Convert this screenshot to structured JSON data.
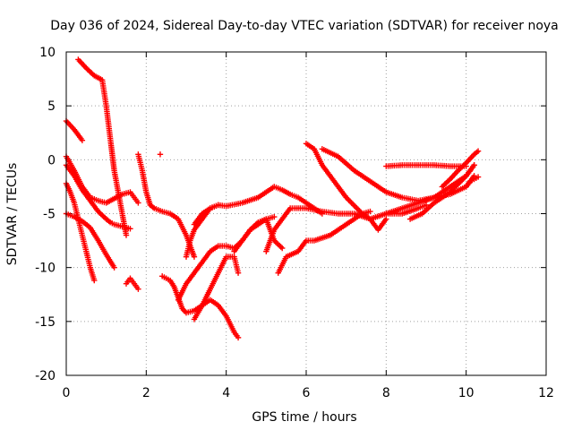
{
  "chart_data": {
    "type": "scatter",
    "title": "Day 036 of 2024, Sidereal Day-to-day VTEC variation (SDTVAR) for receiver noya",
    "xlabel": "GPS time / hours",
    "ylabel": "SDTVAR / TECUs",
    "xlim": [
      0,
      12
    ],
    "ylim": [
      -20,
      10
    ],
    "xticks": [
      0,
      2,
      4,
      6,
      8,
      10,
      12
    ],
    "yticks": [
      -20,
      -15,
      -10,
      -5,
      0,
      5,
      10
    ],
    "xtick_labels": [
      "0",
      "2",
      "4",
      "6",
      "8",
      "10",
      "12"
    ],
    "ytick_labels": [
      "-20",
      "-15",
      "-10",
      "-5",
      "0",
      "5",
      "10"
    ],
    "grid": true,
    "marker": "+",
    "color": "#ff0000",
    "series": [
      {
        "name": "arc-1",
        "x": [
          0.3,
          0.5,
          0.7,
          0.9,
          1.0,
          1.1,
          1.2,
          1.3,
          1.4,
          1.5
        ],
        "y": [
          9.3,
          8.5,
          7.8,
          7.4,
          5,
          2,
          -1,
          -3,
          -5,
          -7
        ]
      },
      {
        "name": "arc-2",
        "x": [
          0.0,
          0.2,
          0.4
        ],
        "y": [
          3.6,
          2.8,
          1.8
        ]
      },
      {
        "name": "arc-3",
        "x": [
          0.0,
          0.2,
          0.4,
          0.6,
          0.8,
          1.0,
          1.2,
          1.4,
          1.6,
          1.7,
          1.8
        ],
        "y": [
          0.3,
          -1,
          -2.5,
          -3.5,
          -3.8,
          -4,
          -3.6,
          -3.2,
          -3,
          -3.5,
          -4
        ]
      },
      {
        "name": "arc-4",
        "x": [
          0.0,
          0.2,
          0.4,
          0.6,
          0.8,
          1.0,
          1.1,
          1.2,
          1.4,
          1.6
        ],
        "y": [
          -0.5,
          -1.5,
          -2.8,
          -3.8,
          -4.8,
          -5.5,
          -5.8,
          -6,
          -6.2,
          -6.4
        ]
      },
      {
        "name": "arc-5",
        "x": [
          0.0,
          0.1,
          0.2,
          0.3,
          0.4,
          0.5,
          0.6,
          0.7
        ],
        "y": [
          -2.2,
          -3,
          -4,
          -5.5,
          -7,
          -8.5,
          -10,
          -11.2
        ]
      },
      {
        "name": "arc-6",
        "x": [
          0.0,
          0.2,
          0.4,
          0.6,
          0.8,
          1.0,
          1.2
        ],
        "y": [
          -5,
          -5.3,
          -5.7,
          -6.3,
          -7.5,
          -8.8,
          -10
        ]
      },
      {
        "name": "arc-7",
        "x": [
          1.5,
          1.6,
          1.7,
          1.8
        ],
        "y": [
          -11.5,
          -11,
          -11.5,
          -12
        ]
      },
      {
        "name": "arc-8",
        "x": [
          1.8,
          1.9,
          2.0,
          2.1,
          2.2,
          2.4,
          2.6,
          2.8,
          3.0,
          3.2
        ],
        "y": [
          0.5,
          -1,
          -3,
          -4.2,
          -4.5,
          -4.8,
          -5,
          -5.5,
          -7,
          -9
        ]
      },
      {
        "name": "arc-9",
        "x": [
          2.35
        ],
        "y": [
          0.5
        ]
      },
      {
        "name": "arc-10",
        "x": [
          2.4,
          2.5,
          2.6,
          2.7,
          2.8,
          2.9,
          3.0,
          3.2,
          3.4,
          3.6,
          3.8,
          4.0,
          4.2,
          4.3
        ],
        "y": [
          -10.8,
          -11,
          -11.2,
          -11.8,
          -12.8,
          -13.8,
          -14.2,
          -14,
          -13.5,
          -13,
          -13.5,
          -14.5,
          -16,
          -16.5
        ]
      },
      {
        "name": "arc-11",
        "x": [
          2.8,
          3.0,
          3.2,
          3.4,
          3.6,
          3.8,
          4.0,
          4.2,
          4.4,
          4.6,
          4.8,
          5.0,
          5.2
        ],
        "y": [
          -13,
          -11.5,
          -10.5,
          -9.5,
          -8.5,
          -8.0,
          -8.0,
          -8.2,
          -7.5,
          -6.5,
          -6.0,
          -5.5,
          -5.3
        ]
      },
      {
        "name": "arc-12",
        "x": [
          3.2,
          3.4,
          3.6,
          3.8,
          4.0,
          4.2,
          4.3
        ],
        "y": [
          -14.8,
          -13.5,
          -12,
          -10.5,
          -9.0,
          -9.0,
          -10.5
        ]
      },
      {
        "name": "arc-13",
        "x": [
          3.0,
          3.1,
          3.2,
          3.4,
          3.6,
          3.8
        ],
        "y": [
          -9,
          -7.5,
          -6.5,
          -5.5,
          -4.5,
          -4.2
        ]
      },
      {
        "name": "arc-14",
        "x": [
          3.2,
          3.4,
          3.6,
          3.8,
          4.0,
          4.4,
          4.8,
          5.0,
          5.2,
          5.4,
          5.6,
          5.8,
          6.0,
          6.2,
          6.4
        ],
        "y": [
          -6,
          -5,
          -4.5,
          -4.2,
          -4.3,
          -4.0,
          -3.5,
          -3.0,
          -2.5,
          -2.8,
          -3.2,
          -3.5,
          -4.0,
          -4.5,
          -5.0
        ]
      },
      {
        "name": "arc-15",
        "x": [
          4.2,
          4.4,
          4.6,
          4.8,
          5.0,
          5.2,
          5.4
        ],
        "y": [
          -8.5,
          -7.5,
          -6.5,
          -5.8,
          -5.5,
          -7.5,
          -8.2
        ]
      },
      {
        "name": "arc-16",
        "x": [
          5.3,
          5.5,
          5.8,
          6.0,
          6.2,
          6.6,
          7.0,
          7.4,
          7.6
        ],
        "y": [
          -10.5,
          -9,
          -8.5,
          -7.5,
          -7.5,
          -7.0,
          -6.0,
          -5.0,
          -4.8
        ]
      },
      {
        "name": "arc-17",
        "x": [
          5.0,
          5.2,
          5.6,
          6.0,
          6.4,
          6.8,
          7.2,
          7.6,
          8.0,
          8.4,
          8.8,
          9.0
        ],
        "y": [
          -8.5,
          -6.5,
          -4.5,
          -4.5,
          -4.8,
          -5.0,
          -5.0,
          -5.5,
          -5.0,
          -5.0,
          -4.5,
          -4.2
        ]
      },
      {
        "name": "arc-18",
        "x": [
          6.0,
          6.2,
          6.4,
          6.6,
          6.8,
          7.0,
          7.4,
          7.6,
          7.8,
          8.0
        ],
        "y": [
          1.5,
          1.0,
          -0.5,
          -1.5,
          -2.5,
          -3.5,
          -5,
          -5.5,
          -6.5,
          -5.5
        ]
      },
      {
        "name": "arc-19",
        "x": [
          6.4,
          6.8,
          7.2,
          7.6,
          8.0,
          8.4,
          8.8,
          9.2,
          9.6,
          10.0,
          10.2
        ],
        "y": [
          1.0,
          0.3,
          -1.0,
          -2.0,
          -3.0,
          -3.5,
          -3.8,
          -3.5,
          -2.5,
          -1.5,
          -0.5
        ]
      },
      {
        "name": "arc-20",
        "x": [
          8.0,
          8.4,
          8.8,
          9.2,
          9.6,
          10.0
        ],
        "y": [
          -0.6,
          -0.5,
          -0.5,
          -0.5,
          -0.6,
          -0.6
        ]
      },
      {
        "name": "arc-21",
        "x": [
          8.0,
          8.4,
          8.8,
          9.2,
          9.6,
          10.0,
          10.2
        ],
        "y": [
          -5.0,
          -4.5,
          -4.0,
          -3.5,
          -3.2,
          -2.5,
          -1.5
        ]
      },
      {
        "name": "arc-22",
        "x": [
          8.6,
          8.9,
          9.2,
          9.6,
          10.0,
          10.2
        ],
        "y": [
          -5.5,
          -5.0,
          -4.0,
          -3.0,
          -1.5,
          -0.5
        ]
      },
      {
        "name": "arc-23",
        "x": [
          9.4,
          9.6,
          9.8,
          10.0,
          10.2,
          10.3
        ],
        "y": [
          -2.5,
          -1.8,
          -1.0,
          -0.3,
          0.5,
          0.8
        ]
      },
      {
        "name": "arc-24",
        "x": [
          10.0,
          10.1,
          10.2,
          10.3
        ],
        "y": [
          -2.5,
          -2.0,
          -1.8,
          -1.6
        ]
      }
    ]
  }
}
